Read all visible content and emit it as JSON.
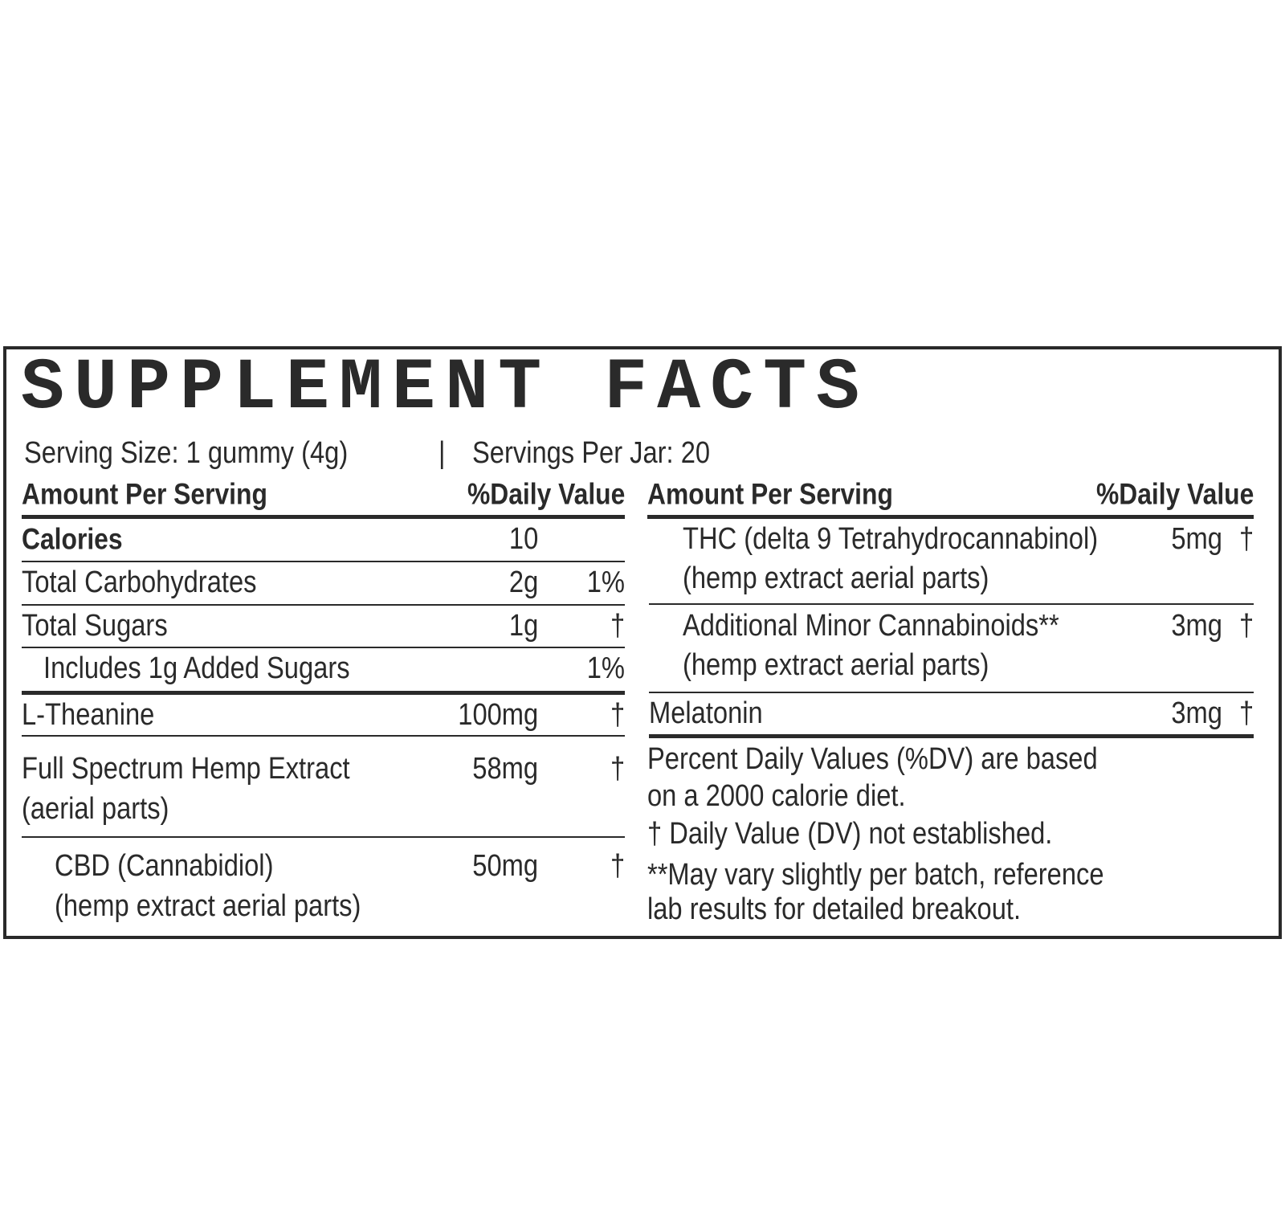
{
  "title": "SUPPLEMENT FACTS",
  "serving": {
    "size": "Serving Size: 1 gummy (4g)",
    "separator": "|",
    "servings": "Servings Per Jar: 20"
  },
  "columns": [
    {
      "header": {
        "amount": "Amount Per Serving",
        "daily_value": "%Daily Value"
      },
      "rows": [
        {
          "name": "Calories",
          "amount": "10"
        },
        {
          "name": "Total Carbohydrates",
          "amount": "2g",
          "daily_value": "1%"
        },
        {
          "name": "Total Sugars",
          "amount": "1g",
          "daily_value": "†"
        },
        {
          "name": "Includes 1g Added Sugars",
          "daily_value": "1%"
        },
        {
          "name": "L-Theanine",
          "amount": "100mg",
          "daily_value": "†"
        },
        {
          "name": "Full Spectrum Hemp Extract",
          "note": "(aerial parts)",
          "amount": "58mg",
          "daily_value": "†"
        },
        {
          "name": "CBD (Cannabidiol)",
          "note": "(hemp extract aerial parts)",
          "amount": "50mg",
          "daily_value": "†"
        }
      ]
    },
    {
      "header": {
        "amount": "Amount Per Serving",
        "daily_value": "%Daily Value"
      },
      "rows": [
        {
          "name": "THC (delta 9 Tetrahydrocannabinol)",
          "note": "(hemp extract aerial parts)",
          "amount": "5mg",
          "daily_value": "†"
        },
        {
          "name": "Additional Minor Cannabinoids**",
          "note": "(hemp extract aerial parts)",
          "amount": "3mg",
          "daily_value": "†"
        },
        {
          "name": "Melatonin",
          "amount": "3mg",
          "daily_value": "†"
        }
      ]
    }
  ],
  "footnotes": [
    "Percent Daily Values (%DV) are based",
    "on a 2000 calorie diet.",
    "† Daily Value (DV) not established.",
    "**May vary slightly per batch, reference",
    "lab results for detailed breakout."
  ]
}
